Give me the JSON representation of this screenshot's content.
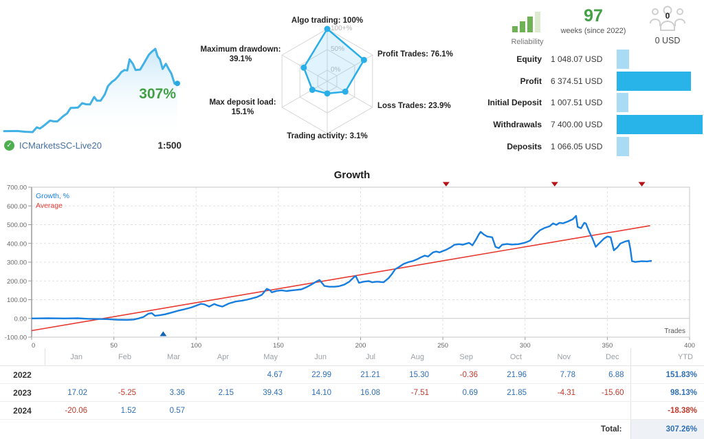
{
  "account": {
    "name": "ICMarketsSC-Live20",
    "leverage": "1:500",
    "growth_badge": "307%"
  },
  "summary": {
    "reliability_label": "Reliability",
    "weeks_value": "97",
    "weeks_caption": "weeks (since 2022)",
    "subscribers_count": "0",
    "price": "0 USD"
  },
  "stats": {
    "bar_max": 7400,
    "bar_max_width": 125,
    "rows": [
      {
        "label": "Equity",
        "value": "1 048.07 USD",
        "amount": 1048.07,
        "tone": "light"
      },
      {
        "label": "Profit",
        "value": "6 374.51 USD",
        "amount": 6374.51,
        "tone": "dark"
      },
      {
        "label": "Initial Deposit",
        "value": "1 007.51 USD",
        "amount": 1007.51,
        "tone": "light"
      },
      {
        "label": "Withdrawals",
        "value": "7 400.00 USD",
        "amount": 7400,
        "tone": "dark"
      },
      {
        "label": "Deposits",
        "value": "1 066.05 USD",
        "amount": 1066.05,
        "tone": "light"
      }
    ]
  },
  "chart_data": [
    {
      "id": "sparkline",
      "type": "area",
      "note": "miniature of growth curve",
      "end_label": "307%",
      "line_color": "#41b1e6"
    },
    {
      "id": "radar",
      "type": "radar",
      "rings": [
        "0%",
        "50%",
        "100+%"
      ],
      "line_color": "#29aee8",
      "axes": [
        {
          "label": "Algo trading",
          "value": 100,
          "lines": [
            "Algo trading: 100%"
          ]
        },
        {
          "label": "Profit Trades",
          "value": 76.1,
          "lines": [
            "Profit Trades: 76.1%"
          ]
        },
        {
          "label": "Loss Trades",
          "value": 23.9,
          "lines": [
            "Loss Trades: 23.9%"
          ]
        },
        {
          "label": "Trading activity",
          "value": 3.1,
          "lines": [
            "Trading activity: 3.1%"
          ]
        },
        {
          "label": "Max deposit load",
          "value": 15.1,
          "lines": [
            "Max deposit load:",
            "15.1%"
          ]
        },
        {
          "label": "Maximum drawdown",
          "value": 39.1,
          "lines": [
            "Maximum drawdown:",
            "39.1%"
          ]
        }
      ]
    },
    {
      "id": "growth",
      "type": "line",
      "title": "Growth",
      "xlabel": "Trades",
      "xlim": [
        0,
        400
      ],
      "ylim": [
        -100,
        700
      ],
      "x_ticks": [
        0,
        50,
        100,
        150,
        200,
        250,
        300,
        350,
        400
      ],
      "y_ticks": [
        "700.00",
        "600.00",
        "500.00",
        "400.00",
        "300.00",
        "200.00",
        "100.00",
        "0.00",
        "-100.00"
      ],
      "grid": true,
      "legend_position": "top-left",
      "withdrawal_marker_trades": [
        252,
        318,
        371
      ],
      "deposit_marker_trades": [
        80
      ],
      "series": [
        {
          "name": "Growth, %",
          "color": "#177ee0",
          "points": [
            [
              0,
              0
            ],
            [
              10,
              1
            ],
            [
              20,
              0
            ],
            [
              28,
              1
            ],
            [
              34,
              -2
            ],
            [
              40,
              -3
            ],
            [
              46,
              -4
            ],
            [
              52,
              -7
            ],
            [
              58,
              -8
            ],
            [
              62,
              -6
            ],
            [
              65,
              0
            ],
            [
              68,
              8
            ],
            [
              71,
              25
            ],
            [
              73,
              28
            ],
            [
              75,
              14
            ],
            [
              78,
              17
            ],
            [
              81,
              22
            ],
            [
              85,
              31
            ],
            [
              89,
              41
            ],
            [
              93,
              49
            ],
            [
              97,
              58
            ],
            [
              100,
              68
            ],
            [
              103,
              78
            ],
            [
              105,
              75
            ],
            [
              108,
              63
            ],
            [
              111,
              77
            ],
            [
              113,
              70
            ],
            [
              116,
              63
            ],
            [
              120,
              80
            ],
            [
              124,
              90
            ],
            [
              128,
              95
            ],
            [
              131,
              100
            ],
            [
              134,
              107
            ],
            [
              137,
              114
            ],
            [
              140,
              126
            ],
            [
              143,
              158
            ],
            [
              145,
              150
            ],
            [
              146,
              139
            ],
            [
              149,
              147
            ],
            [
              152,
              150
            ],
            [
              155,
              146
            ],
            [
              158,
              149
            ],
            [
              161,
              152
            ],
            [
              164,
              155
            ],
            [
              167,
              166
            ],
            [
              170,
              180
            ],
            [
              173,
              196
            ],
            [
              175,
              205
            ],
            [
              178,
              173
            ],
            [
              181,
              169
            ],
            [
              184,
              169
            ],
            [
              187,
              172
            ],
            [
              190,
              180
            ],
            [
              193,
              195
            ],
            [
              196,
              220
            ],
            [
              197,
              227
            ],
            [
              199,
              190
            ],
            [
              202,
              196
            ],
            [
              205,
              199
            ],
            [
              207,
              193
            ],
            [
              210,
              196
            ],
            [
              214,
              193
            ],
            [
              217,
              215
            ],
            [
              219,
              236
            ],
            [
              221,
              262
            ],
            [
              224,
              278
            ],
            [
              226,
              290
            ],
            [
              229,
              300
            ],
            [
              232,
              307
            ],
            [
              235,
              318
            ],
            [
              237,
              327
            ],
            [
              239,
              335
            ],
            [
              241,
              330
            ],
            [
              244,
              352
            ],
            [
              246,
              357
            ],
            [
              248,
              352
            ],
            [
              250,
              359
            ],
            [
              252,
              366
            ],
            [
              255,
              380
            ],
            [
              257,
              393
            ],
            [
              260,
              396
            ],
            [
              262,
              393
            ],
            [
              264,
              398
            ],
            [
              266,
              403
            ],
            [
              268,
              390
            ],
            [
              270,
              418
            ],
            [
              272,
              450
            ],
            [
              273,
              462
            ],
            [
              275,
              447
            ],
            [
              277,
              437
            ],
            [
              280,
              433
            ],
            [
              282,
              382
            ],
            [
              284,
              375
            ],
            [
              286,
              393
            ],
            [
              289,
              397
            ],
            [
              292,
              394
            ],
            [
              296,
              396
            ],
            [
              300,
              404
            ],
            [
              303,
              415
            ],
            [
              306,
              445
            ],
            [
              309,
              470
            ],
            [
              312,
              483
            ],
            [
              315,
              492
            ],
            [
              317,
              507
            ],
            [
              319,
              499
            ],
            [
              321,
              510
            ],
            [
              323,
              507
            ],
            [
              326,
              517
            ],
            [
              329,
              529
            ],
            [
              331,
              547
            ],
            [
              332,
              488
            ],
            [
              334,
              481
            ],
            [
              336,
              510
            ],
            [
              337,
              506
            ],
            [
              339,
              462
            ],
            [
              341,
              426
            ],
            [
              343,
              382
            ],
            [
              345,
              400
            ],
            [
              348,
              426
            ],
            [
              350,
              437
            ],
            [
              352,
              433
            ],
            [
              354,
              363
            ],
            [
              356,
              378
            ],
            [
              358,
              400
            ],
            [
              361,
              411
            ],
            [
              363,
              415
            ],
            [
              364,
              370
            ],
            [
              365,
              305
            ],
            [
              367,
              301
            ],
            [
              371,
              305
            ],
            [
              374,
              304
            ],
            [
              377,
              307
            ]
          ]
        },
        {
          "name": "Average",
          "color": "#e8372e",
          "points": [
            [
              0,
              -65
            ],
            [
              376,
              495
            ]
          ]
        }
      ]
    }
  ],
  "monthly_table": {
    "months": [
      "Jan",
      "Feb",
      "Mar",
      "Apr",
      "May",
      "Jun",
      "Jul",
      "Aug",
      "Sep",
      "Oct",
      "Nov",
      "Dec"
    ],
    "ytd_header": "YTD",
    "rows": [
      {
        "year": "2022",
        "values": [
          "",
          "",
          "",
          "",
          "4.67",
          "22.99",
          "21.21",
          "15.30",
          "-0.36",
          "21.96",
          "7.78",
          "6.88"
        ],
        "ytd": "151.83%"
      },
      {
        "year": "2023",
        "values": [
          "17.02",
          "-5.25",
          "3.36",
          "2.15",
          "39.43",
          "14.10",
          "16.08",
          "-7.51",
          "0.69",
          "21.85",
          "-4.31",
          "-15.60"
        ],
        "ytd": "98.13%"
      },
      {
        "year": "2024",
        "values": [
          "-20.06",
          "1.52",
          "0.57",
          "",
          "",
          "",
          "",
          "",
          "",
          "",
          "",
          ""
        ],
        "ytd": "-18.38%"
      }
    ],
    "total_label": "Total:",
    "total_value": "307.26%"
  },
  "colors": {
    "growth_line": "#177ee0",
    "average_line": "#e8372e",
    "spark_line": "#41b1e6",
    "bar_dark": "#29b4e9",
    "bar_light": "#a9dcf4",
    "green": "#43a047",
    "table_positive": "#2e6fb7",
    "table_negative": "#c0392b",
    "withdrawal_marker": "#b51318",
    "deposit_marker": "#1464b4",
    "grid": "#e1e1e1"
  }
}
